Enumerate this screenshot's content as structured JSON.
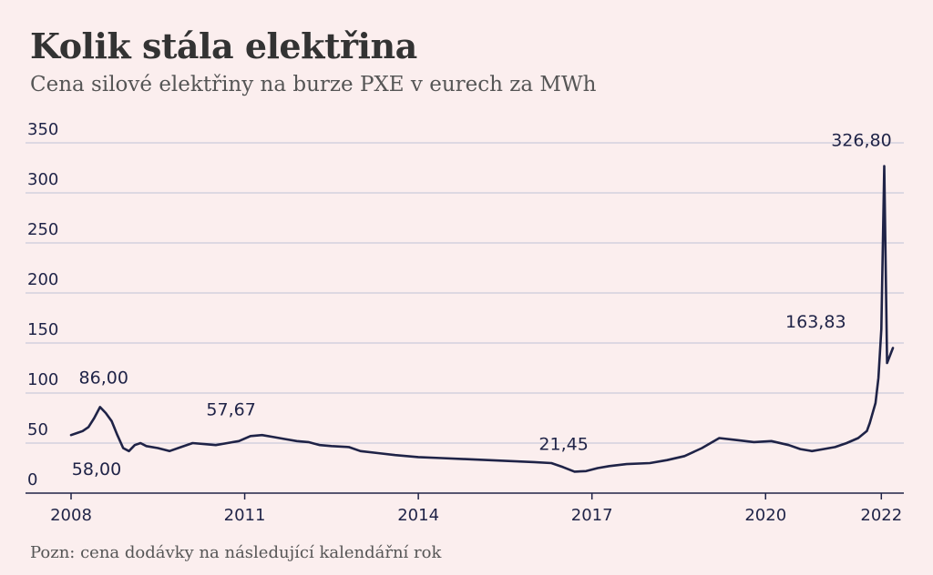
{
  "colors": {
    "background": "#fbeeee",
    "line": "#1f2347",
    "grid": "#bfc1d6",
    "title": "#333333"
  },
  "chart_data": {
    "type": "line",
    "title": "Kolik stála elektřina",
    "subtitle": "Cena silové elektřiny na burze PXE v eurech za MWh",
    "note": "Pozn: cena dodávky na následující kalendářní rok",
    "xlabel": "",
    "ylabel": "",
    "xlim": [
      2008,
      2022.2
    ],
    "ylim": [
      0,
      350
    ],
    "yticks": [
      0,
      50,
      100,
      150,
      200,
      250,
      300,
      350
    ],
    "ytick_labels": [
      "0",
      "50",
      "100",
      "150",
      "200",
      "250",
      "300",
      "350"
    ],
    "xticks": [
      2008,
      2011,
      2014,
      2017,
      2020,
      2022
    ],
    "xtick_labels": [
      "2008",
      "2011",
      "2014",
      "2017",
      "2020",
      "2022"
    ],
    "grid": "horizontal",
    "legend": "none",
    "series": [
      {
        "x": [
          2008.0,
          2008.1,
          2008.2,
          2008.3,
          2008.4,
          2008.5,
          2008.6,
          2008.7,
          2008.8,
          2008.9,
          2009.0,
          2009.1,
          2009.2,
          2009.3,
          2009.5,
          2009.7,
          2009.9,
          2010.1,
          2010.3,
          2010.5,
          2010.7,
          2010.9,
          2011.1,
          2011.3,
          2011.5,
          2011.7,
          2011.9,
          2012.1,
          2012.3,
          2012.5,
          2012.8,
          2013.0,
          2013.3,
          2013.6,
          2014.0,
          2014.4,
          2014.8,
          2015.2,
          2015.6,
          2016.0,
          2016.3,
          2016.5,
          2016.7,
          2016.9,
          2017.1,
          2017.3,
          2017.6,
          2018.0,
          2018.3,
          2018.6,
          2018.9,
          2019.2,
          2019.5,
          2019.8,
          2020.1,
          2020.4,
          2020.6,
          2020.8,
          2021.0,
          2021.2,
          2021.4,
          2021.6,
          2021.75,
          2021.8,
          2021.9,
          2021.95,
          2022.0,
          2022.05,
          2022.1,
          2022.2
        ],
        "y": [
          58,
          60,
          62,
          66,
          75,
          86,
          80,
          72,
          58,
          45,
          42,
          48,
          50,
          47,
          45,
          42,
          46,
          50,
          49,
          48,
          50,
          52,
          57,
          58,
          56,
          54,
          52,
          51,
          48,
          47,
          46,
          42,
          40,
          38,
          36,
          35,
          34,
          33,
          32,
          31,
          30,
          26,
          21.45,
          22,
          25,
          27,
          29,
          30,
          33,
          37,
          45,
          55,
          53,
          51,
          52,
          48,
          44,
          42,
          44,
          46,
          50,
          55,
          62,
          70,
          90,
          115,
          163.83,
          326.8,
          130,
          145
        ]
      }
    ],
    "annotations": [
      {
        "label": "86,00",
        "x": 2008.5,
        "y": 86.0
      },
      {
        "label": "58,00",
        "x": 2008.0,
        "y": 58.0
      },
      {
        "label": "57,67",
        "x": 2011.3,
        "y": 57.67
      },
      {
        "label": "21,45",
        "x": 2016.7,
        "y": 21.45
      },
      {
        "label": "163,83",
        "x": 2022.0,
        "y": 163.83
      },
      {
        "label": "326,80",
        "x": 2022.05,
        "y": 326.8
      }
    ]
  }
}
